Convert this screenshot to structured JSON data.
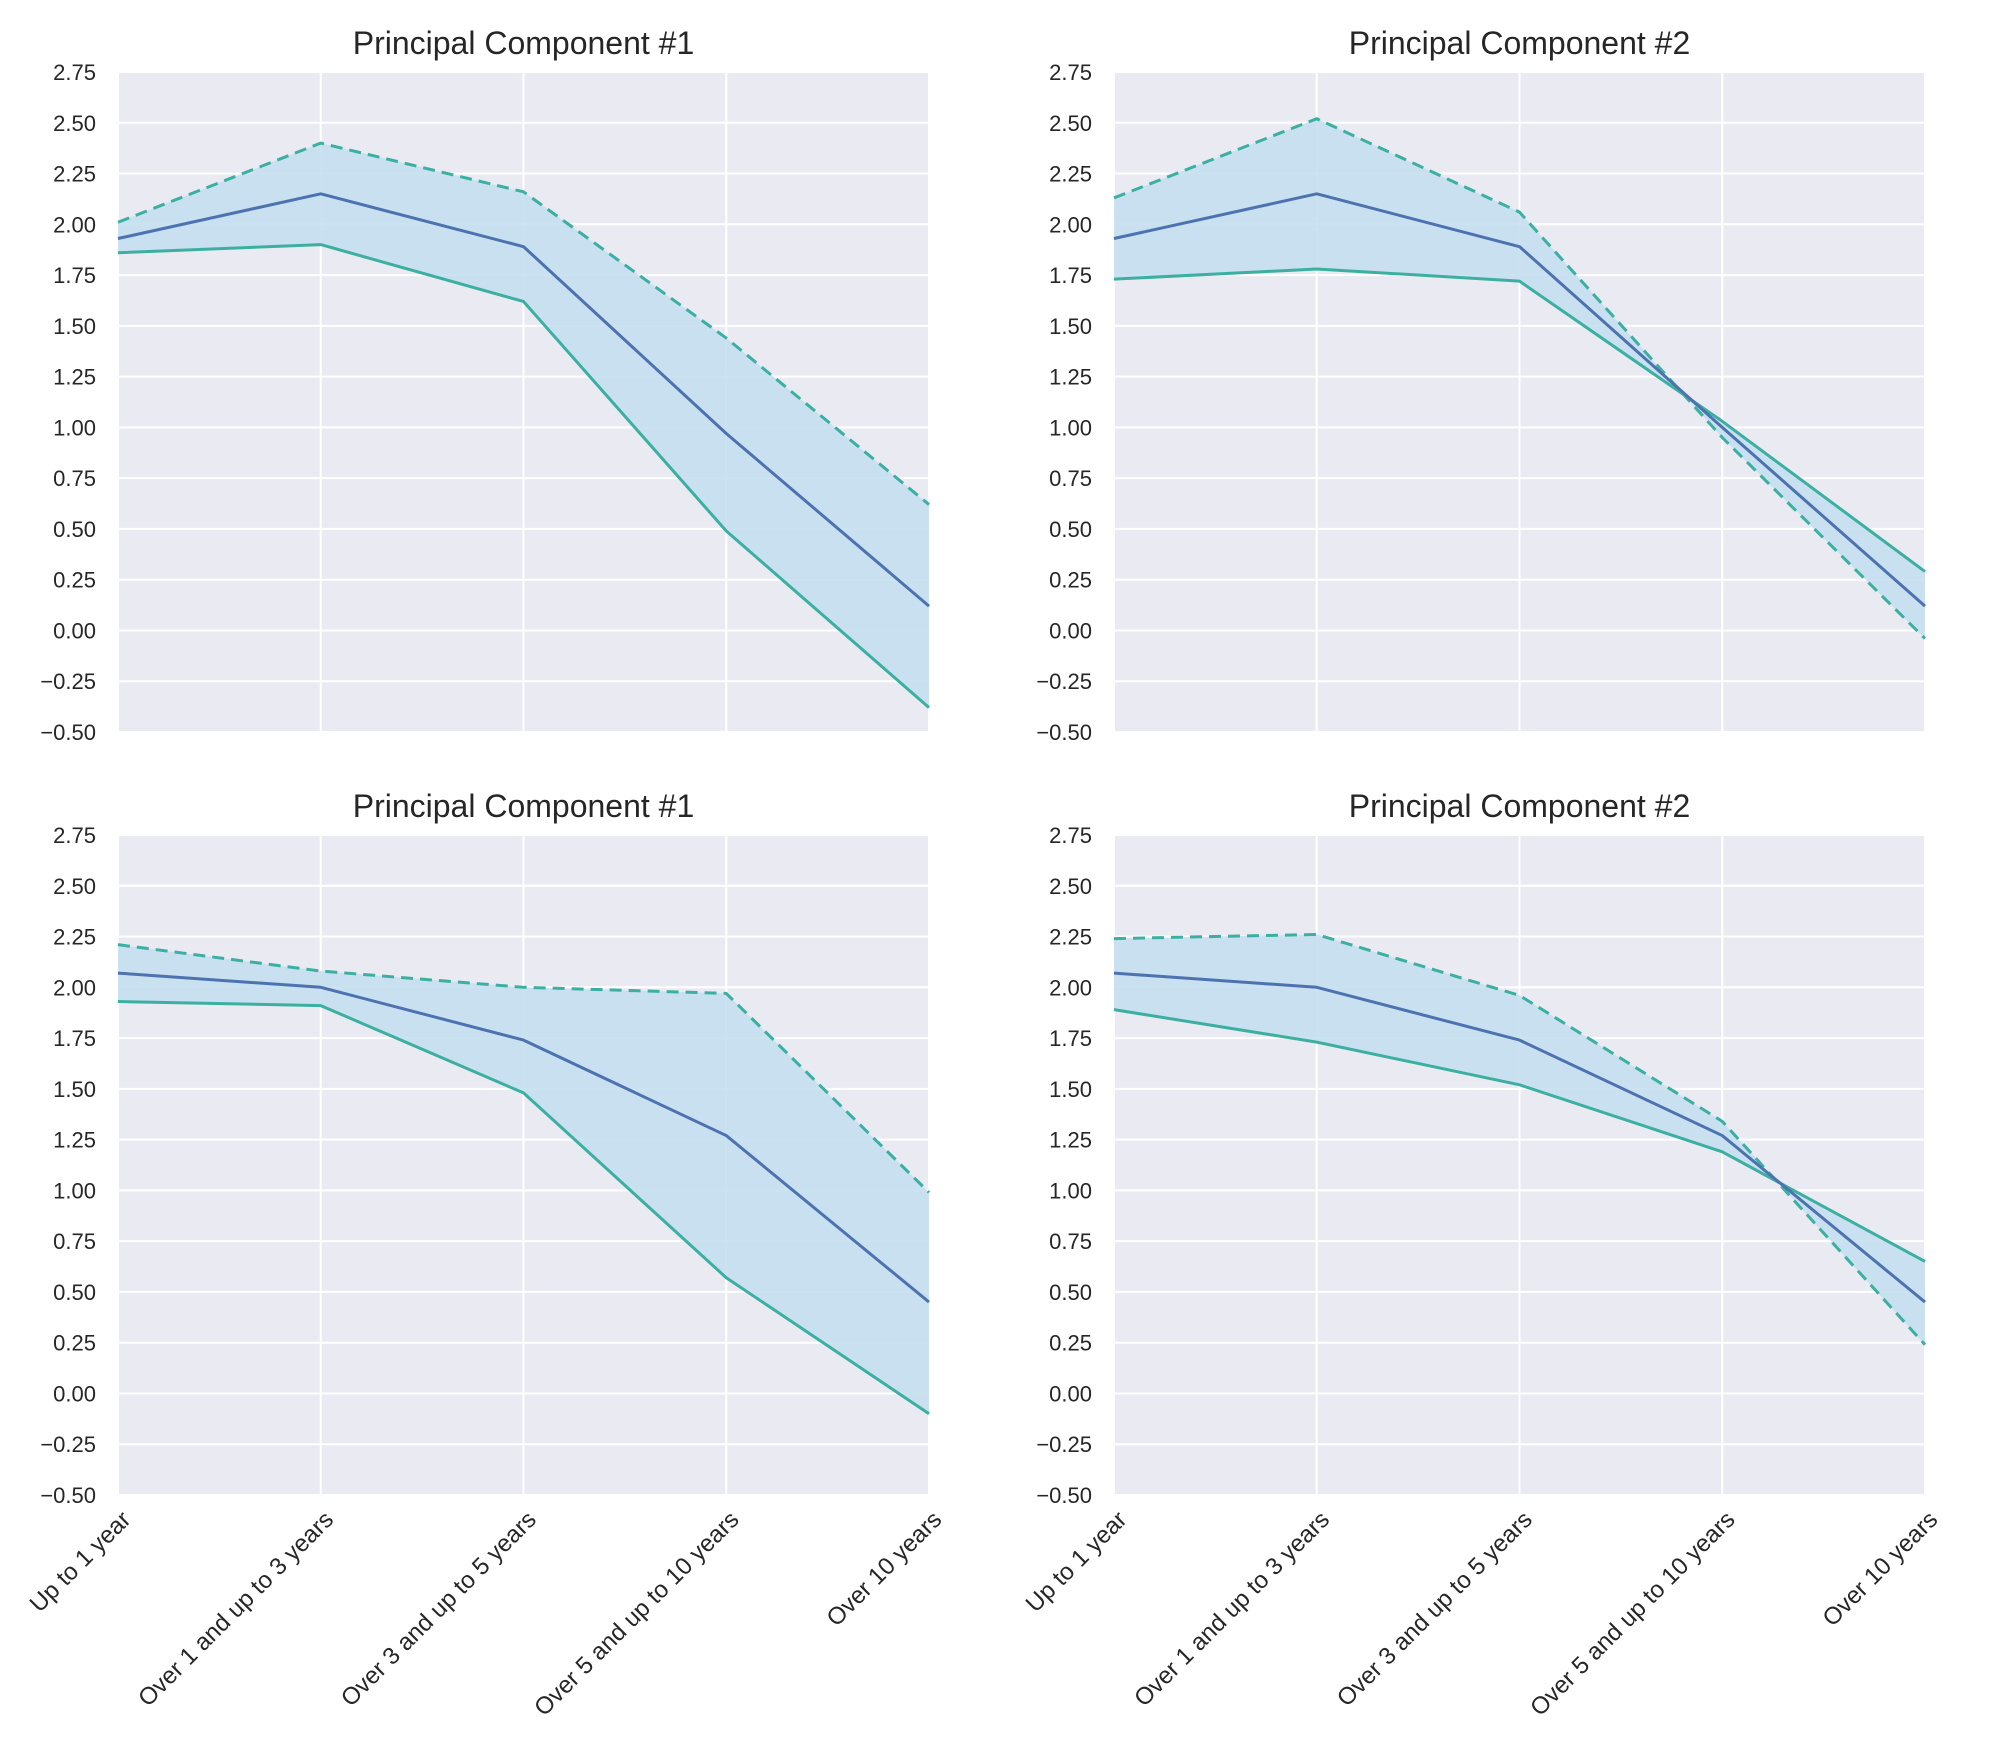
{
  "figure": {
    "background": "#ffffff",
    "axes_background": "#eaeaf2",
    "grid_color": "#ffffff",
    "fill_color": "#c5dff0",
    "center_line_color": "#4c72b0",
    "band_line_color": "#3cb0a0"
  },
  "chart_data": [
    {
      "type": "line",
      "title": "Principal Component #1",
      "categories": [
        "Up to 1 year",
        "Over 1 and up to 3 years",
        "Over 3 and up to 5 years",
        "Over 5 and up to 10 years",
        "Over 10 years"
      ],
      "show_xticklabels": false,
      "ylim": [
        -0.5,
        2.75
      ],
      "yticks": [
        "2.75",
        "2.50",
        "2.25",
        "2.00",
        "1.75",
        "1.50",
        "1.25",
        "1.00",
        "0.75",
        "0.50",
        "0.25",
        "0.00",
        "−0.25",
        "−0.50"
      ],
      "grid": true,
      "series": [
        {
          "style": "solid",
          "role": "center",
          "values": [
            1.93,
            2.15,
            1.89,
            0.97,
            0.12
          ]
        },
        {
          "style": "dashed",
          "role": "upper",
          "values": [
            2.01,
            2.4,
            2.16,
            1.44,
            0.62
          ]
        },
        {
          "style": "solid",
          "role": "lower",
          "values": [
            1.86,
            1.9,
            1.62,
            0.49,
            -0.38
          ]
        }
      ]
    },
    {
      "type": "line",
      "title": "Principal Component #2",
      "categories": [
        "Up to 1 year",
        "Over 1 and up to 3 years",
        "Over 3 and up to 5 years",
        "Over 5 and up to 10 years",
        "Over 10 years"
      ],
      "show_xticklabels": false,
      "ylim": [
        -0.5,
        2.75
      ],
      "yticks": [
        "2.75",
        "2.50",
        "2.25",
        "2.00",
        "1.75",
        "1.50",
        "1.25",
        "1.00",
        "0.75",
        "0.50",
        "0.25",
        "0.00",
        "−0.25",
        "−0.50"
      ],
      "grid": true,
      "series": [
        {
          "style": "solid",
          "role": "center",
          "values": [
            1.93,
            2.15,
            1.89,
            1.0,
            0.12
          ]
        },
        {
          "style": "dashed",
          "role": "upper",
          "values": [
            2.13,
            2.52,
            2.06,
            0.95,
            -0.04
          ]
        },
        {
          "style": "solid",
          "role": "lower",
          "values": [
            1.73,
            1.78,
            1.72,
            1.03,
            0.29
          ]
        }
      ]
    },
    {
      "type": "line",
      "title": "Principal Component #1",
      "categories": [
        "Up to 1 year",
        "Over 1 and up to 3 years",
        "Over 3 and up to 5 years",
        "Over 5 and up to 10 years",
        "Over 10 years"
      ],
      "show_xticklabels": true,
      "ylim": [
        -0.5,
        2.75
      ],
      "yticks": [
        "2.75",
        "2.50",
        "2.25",
        "2.00",
        "1.75",
        "1.50",
        "1.25",
        "1.00",
        "0.75",
        "0.50",
        "0.25",
        "0.00",
        "−0.25",
        "−0.50"
      ],
      "grid": true,
      "series": [
        {
          "style": "solid",
          "role": "center",
          "values": [
            2.07,
            2.0,
            1.74,
            1.27,
            0.45
          ]
        },
        {
          "style": "dashed",
          "role": "upper",
          "values": [
            2.21,
            2.08,
            2.0,
            1.97,
            0.99
          ]
        },
        {
          "style": "solid",
          "role": "lower",
          "values": [
            1.93,
            1.91,
            1.48,
            0.57,
            -0.1
          ]
        }
      ]
    },
    {
      "type": "line",
      "title": "Principal Component #2",
      "categories": [
        "Up to 1 year",
        "Over 1 and up to 3 years",
        "Over 3 and up to 5 years",
        "Over 5 and up to 10 years",
        "Over 10 years"
      ],
      "show_xticklabels": true,
      "ylim": [
        -0.5,
        2.75
      ],
      "yticks": [
        "2.75",
        "2.50",
        "2.25",
        "2.00",
        "1.75",
        "1.50",
        "1.25",
        "1.00",
        "0.75",
        "0.50",
        "0.25",
        "0.00",
        "−0.25",
        "−0.50"
      ],
      "grid": true,
      "series": [
        {
          "style": "solid",
          "role": "center",
          "values": [
            2.07,
            2.0,
            1.74,
            1.27,
            0.45
          ]
        },
        {
          "style": "dashed",
          "role": "upper",
          "values": [
            2.24,
            2.26,
            1.96,
            1.34,
            0.24
          ]
        },
        {
          "style": "solid",
          "role": "lower",
          "values": [
            1.89,
            1.73,
            1.52,
            1.19,
            0.65
          ]
        }
      ]
    }
  ]
}
